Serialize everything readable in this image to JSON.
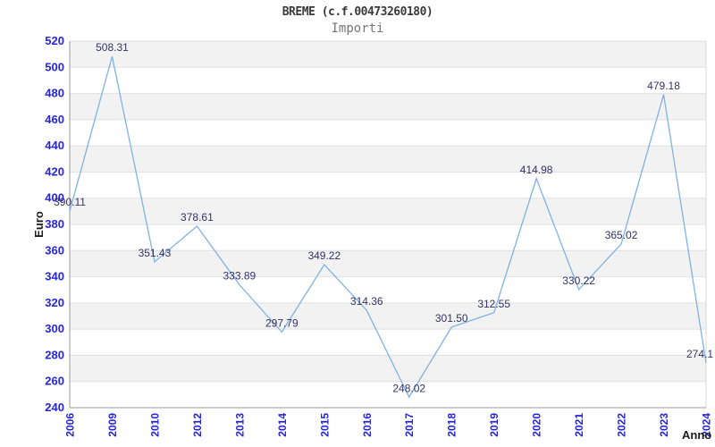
{
  "title": "BREME (c.f.00473260180)",
  "subtitle": "Importi",
  "chart_data": {
    "type": "line",
    "title": "BREME (c.f.00473260180)",
    "subtitle": "Importi",
    "categories": [
      "2006",
      "2009",
      "2010",
      "2012",
      "2013",
      "2014",
      "2015",
      "2016",
      "2017",
      "2018",
      "2019",
      "2020",
      "2021",
      "2022",
      "2023",
      "2024"
    ],
    "values": [
      390.11,
      508.31,
      351.43,
      378.61,
      333.89,
      297.79,
      349.22,
      314.36,
      248.02,
      301.5,
      312.55,
      414.98,
      330.22,
      365.02,
      479.18,
      274.1
    ],
    "value_labels": [
      "390.11",
      "508.31",
      "351.43",
      "378.61",
      "333.89",
      "297.79",
      "349.22",
      "314.36",
      "248.02",
      "301.50",
      "312.55",
      "414.98",
      "330.22",
      "365.02",
      "479.18",
      "274.1"
    ],
    "xlabel": "Anno",
    "ylabel": "Euro",
    "ylim": [
      240,
      520
    ],
    "ytick_step": 20,
    "grid": "horizontal-alternating-bands",
    "legend": "none",
    "colors": {
      "line": "#7fb2e5",
      "data_label": "#333366",
      "tick_label": "#2626d9",
      "band": "#f2f2f2",
      "gridline": "#e0e0e0",
      "axis": "#9a9a9a",
      "border": "#d9d9d9",
      "title": "#3a3a3a",
      "subtitle": "#757575",
      "axis_title": "#1a1a1a"
    }
  }
}
